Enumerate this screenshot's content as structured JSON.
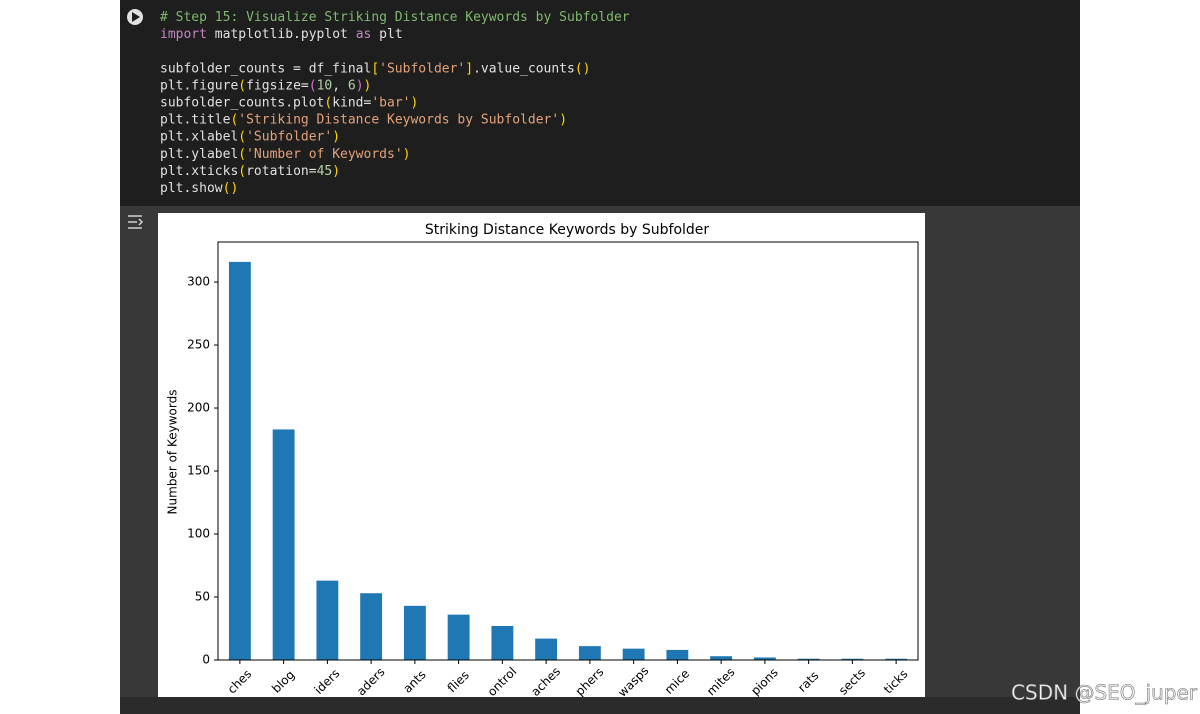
{
  "code": {
    "lines": [
      [
        {
          "text": "# Step 15: Visualize Striking Distance Keywords by Subfolder",
          "color": "#7fb86e"
        }
      ],
      [
        {
          "text": "import",
          "color": "#c586c0"
        },
        {
          "text": " matplotlib.pyplot ",
          "color": "#e0e0e0"
        },
        {
          "text": "as",
          "color": "#c586c0"
        },
        {
          "text": " plt",
          "color": "#e0e0e0"
        }
      ],
      [],
      [
        {
          "text": "subfolder_counts = df_final",
          "color": "#e0e0e0"
        },
        {
          "text": "[",
          "color": "#ffd700"
        },
        {
          "text": "'Subfolder'",
          "color": "#e3a27a"
        },
        {
          "text": "]",
          "color": "#ffd700"
        },
        {
          "text": ".value_counts",
          "color": "#e0e0e0"
        },
        {
          "text": "()",
          "color": "#ffd700"
        }
      ],
      [
        {
          "text": "plt.figure",
          "color": "#e0e0e0"
        },
        {
          "text": "(",
          "color": "#ffd700"
        },
        {
          "text": "figsize=",
          "color": "#e0e0e0"
        },
        {
          "text": "(",
          "color": "#da70d6"
        },
        {
          "text": "10",
          "color": "#b5cea8"
        },
        {
          "text": ", ",
          "color": "#e0e0e0"
        },
        {
          "text": "6",
          "color": "#b5cea8"
        },
        {
          "text": ")",
          "color": "#da70d6"
        },
        {
          "text": ")",
          "color": "#ffd700"
        }
      ],
      [
        {
          "text": "subfolder_counts.plot",
          "color": "#e0e0e0"
        },
        {
          "text": "(",
          "color": "#ffd700"
        },
        {
          "text": "kind=",
          "color": "#e0e0e0"
        },
        {
          "text": "'bar'",
          "color": "#e3a27a"
        },
        {
          "text": ")",
          "color": "#ffd700"
        }
      ],
      [
        {
          "text": "plt.title",
          "color": "#e0e0e0"
        },
        {
          "text": "(",
          "color": "#ffd700"
        },
        {
          "text": "'Striking Distance Keywords by Subfolder'",
          "color": "#e3a27a"
        },
        {
          "text": ")",
          "color": "#ffd700"
        }
      ],
      [
        {
          "text": "plt.xlabel",
          "color": "#e0e0e0"
        },
        {
          "text": "(",
          "color": "#ffd700"
        },
        {
          "text": "'Subfolder'",
          "color": "#e3a27a"
        },
        {
          "text": ")",
          "color": "#ffd700"
        }
      ],
      [
        {
          "text": "plt.ylabel",
          "color": "#e0e0e0"
        },
        {
          "text": "(",
          "color": "#ffd700"
        },
        {
          "text": "'Number of Keywords'",
          "color": "#e3a27a"
        },
        {
          "text": ")",
          "color": "#ffd700"
        }
      ],
      [
        {
          "text": "plt.xticks",
          "color": "#e0e0e0"
        },
        {
          "text": "(",
          "color": "#ffd700"
        },
        {
          "text": "rotation=",
          "color": "#e0e0e0"
        },
        {
          "text": "45",
          "color": "#b5cea8"
        },
        {
          "text": ")",
          "color": "#ffd700"
        }
      ],
      [
        {
          "text": "plt.show",
          "color": "#e0e0e0"
        },
        {
          "text": "()",
          "color": "#ffd700"
        }
      ]
    ]
  },
  "chart_data": {
    "type": "bar",
    "title": "Striking Distance Keywords by Subfolder",
    "ylabel": "Number of Keywords",
    "categories": [
      "ches",
      "blog",
      "iders",
      "aders",
      "ants",
      "flies",
      "ontrol",
      "aches",
      "phers",
      "wasps",
      "mice",
      "mites",
      "pions",
      "rats",
      "sects",
      "ticks"
    ],
    "values": [
      316,
      183,
      63,
      53,
      43,
      36,
      27,
      17,
      11,
      9,
      8,
      3,
      2,
      1,
      1,
      1
    ],
    "color": "#1f77b4",
    "ylim": [
      0,
      331.8
    ],
    "yticks": [
      0,
      50,
      100,
      150,
      200,
      250,
      300
    ],
    "grid": false
  },
  "watermark": "CSDN @SEO_juper"
}
